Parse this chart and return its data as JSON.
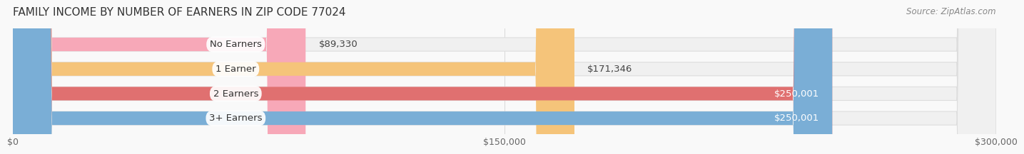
{
  "title": "FAMILY INCOME BY NUMBER OF EARNERS IN ZIP CODE 77024",
  "source": "Source: ZipAtlas.com",
  "categories": [
    "No Earners",
    "1 Earner",
    "2 Earners",
    "3+ Earners"
  ],
  "values": [
    89330,
    171346,
    250001,
    250001
  ],
  "bar_colors": [
    "#f7a8b8",
    "#f5c47a",
    "#e07070",
    "#7aaed6"
  ],
  "bar_background_colors": [
    "#f0f0f0",
    "#f0f0f0",
    "#f0f0f0",
    "#f0f0f0"
  ],
  "label_colors": [
    "#555555",
    "#555555",
    "#ffffff",
    "#ffffff"
  ],
  "value_labels": [
    "$89,330",
    "$171,346",
    "$250,001",
    "$250,001"
  ],
  "xlim": [
    0,
    300000
  ],
  "xticks": [
    0,
    150000,
    300000
  ],
  "xtick_labels": [
    "$0",
    "$150,000",
    "$300,000"
  ],
  "background_color": "#f9f9f9",
  "bar_height": 0.55,
  "title_fontsize": 11,
  "source_fontsize": 8.5,
  "label_fontsize": 9.5,
  "value_fontsize": 9.5,
  "tick_fontsize": 9
}
